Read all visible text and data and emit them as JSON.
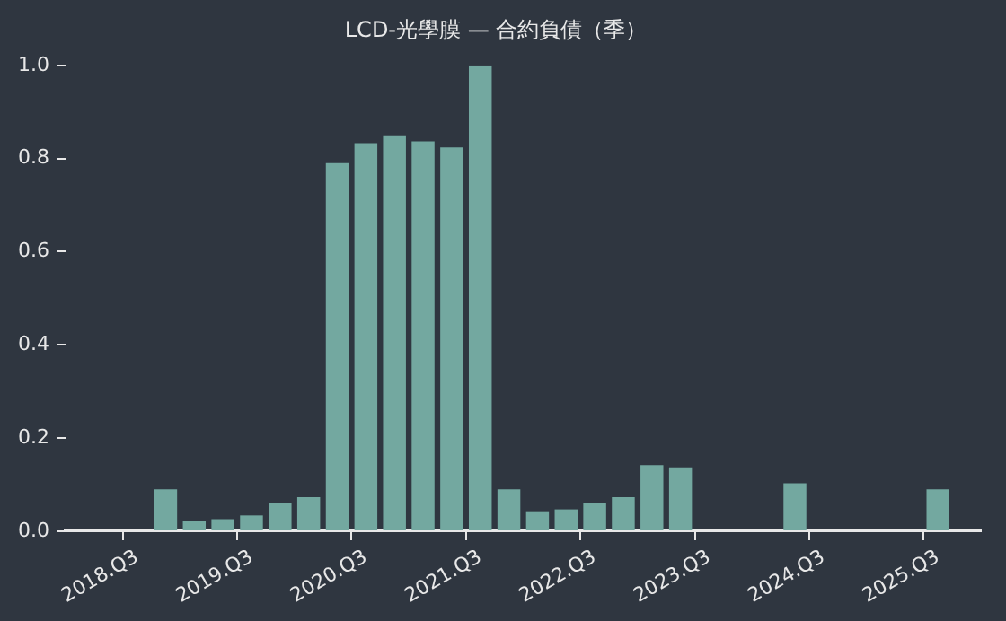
{
  "chart_data": {
    "type": "bar",
    "title": "LCD-光學膜 — 合約負債（季）",
    "categories": [
      null,
      null,
      "2018.Q3",
      null,
      null,
      null,
      "2019.Q3",
      null,
      null,
      null,
      "2020.Q3",
      null,
      null,
      null,
      "2021.Q3",
      null,
      null,
      null,
      "2022.Q3",
      null,
      null,
      null,
      "2023.Q3",
      null,
      null,
      null,
      "2024.Q3",
      null,
      null,
      null,
      "2025.Q3",
      null
    ],
    "values": [
      null,
      null,
      null,
      0.09,
      0.021,
      0.026,
      0.034,
      0.06,
      0.073,
      0.79,
      0.833,
      0.85,
      0.837,
      0.824,
      1.0,
      0.09,
      0.043,
      0.047,
      0.06,
      0.073,
      0.142,
      0.137,
      0,
      0,
      0,
      0.103,
      0,
      0,
      0,
      0,
      0.09,
      null
    ],
    "color": "#73a8a0",
    "ylim": [
      0,
      1
    ],
    "yticks": [
      {
        "value": 0,
        "label": "0.0"
      },
      {
        "value": 0.2,
        "label": "0.2"
      },
      {
        "value": 0.4,
        "label": "0.4"
      },
      {
        "value": 0.6,
        "label": "0.6"
      },
      {
        "value": 0.8,
        "label": "0.8"
      },
      {
        "value": 1,
        "label": "1.0"
      }
    ],
    "grid": false,
    "legend": false
  }
}
